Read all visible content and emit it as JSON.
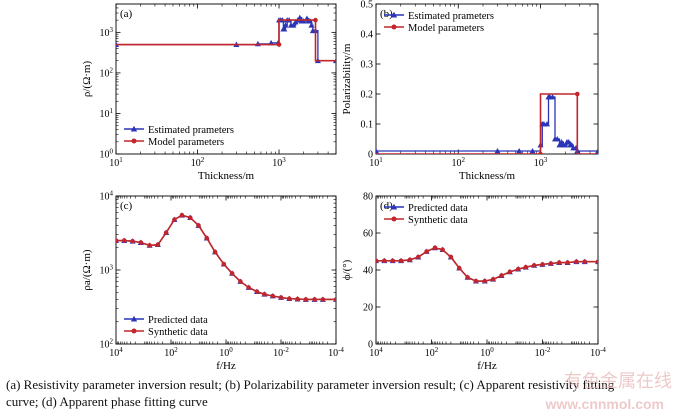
{
  "chart_data": [
    {
      "panel": "(a)",
      "type": "line",
      "xscale": "log",
      "yscale": "log",
      "xlim": [
        10,
        5000
      ],
      "ylim": [
        1,
        5000
      ],
      "xticks": [
        10,
        100,
        1000
      ],
      "xtick_labels": [
        "10¹",
        "10²",
        "10³"
      ],
      "yticks": [
        1,
        10,
        100,
        1000
      ],
      "ytick_labels": [
        "10⁰",
        "10¹",
        "10²",
        "10³"
      ],
      "xlabel": "Thickness/m",
      "ylabel": "ρ/(Ω·m)",
      "legend": "lower-left",
      "series": [
        {
          "name": "Estimated prameters",
          "color": "#2a35b8",
          "marker": "triangle",
          "x": [
            10,
            300,
            550,
            800,
            980,
            1000,
            1050,
            1100,
            1130,
            1160,
            1200,
            1260,
            1330,
            1400,
            1500,
            1600,
            1700,
            1800,
            1900,
            2000,
            2200,
            2300,
            2400,
            2500,
            2600,
            2800,
            3000,
            5000
          ],
          "y": [
            500,
            500,
            520,
            550,
            560,
            2000,
            2000,
            2000,
            1200,
            1200,
            1500,
            2000,
            2000,
            1500,
            1500,
            1800,
            2000,
            2300,
            1900,
            1900,
            2200,
            1900,
            1900,
            1500,
            1100,
            1100,
            200,
            200
          ]
        },
        {
          "name": "Model parameters",
          "color": "#c0262b",
          "marker": "circle",
          "x": [
            10,
            1000,
            1000,
            2800,
            2800,
            5000
          ],
          "y": [
            500,
            500,
            2000,
            2000,
            200,
            200
          ]
        }
      ]
    },
    {
      "panel": "(b)",
      "type": "line",
      "xscale": "log",
      "yscale": "linear",
      "xlim": [
        10,
        5000
      ],
      "ylim": [
        0,
        0.5
      ],
      "xticks": [
        10,
        100,
        1000
      ],
      "xtick_labels": [
        "10¹",
        "10²",
        "10³"
      ],
      "yticks": [
        0,
        0.1,
        0.2,
        0.3,
        0.4,
        0.5
      ],
      "ytick_labels": [
        "0",
        "0.1",
        "0.2",
        "0.3",
        "0.4",
        "0.5"
      ],
      "xlabel": "Thickness/m",
      "ylabel": "Polarizability/m",
      "legend": "top-left",
      "series": [
        {
          "name": "Estimated prameters",
          "color": "#2a35b8",
          "marker": "triangle",
          "x": [
            10,
            300,
            550,
            800,
            1000,
            1050,
            1100,
            1200,
            1250,
            1300,
            1400,
            1500,
            1600,
            1700,
            1800,
            1900,
            2000,
            2100,
            2200,
            2300,
            2400,
            2500,
            2700,
            2800,
            5000
          ],
          "y": [
            0.01,
            0.01,
            0.01,
            0.01,
            0.03,
            0.1,
            0.1,
            0.1,
            0.19,
            0.19,
            0.19,
            0.05,
            0.05,
            0.03,
            0.04,
            0.03,
            0.03,
            0.04,
            0.04,
            0.03,
            0.03,
            0.02,
            0.02,
            0.01,
            0.01
          ]
        },
        {
          "name": "Model parameters",
          "color": "#c0262b",
          "marker": "circle",
          "x": [
            10,
            1000,
            1000,
            2800,
            2800,
            5000
          ],
          "y": [
            0.0,
            0.0,
            0.2,
            0.2,
            0.0,
            0.0
          ]
        }
      ]
    },
    {
      "panel": "(c)",
      "type": "line",
      "xscale": "log",
      "yscale": "log",
      "xreversed": true,
      "xlim": [
        10000,
        0.0001
      ],
      "ylim": [
        100,
        10000
      ],
      "xticks": [
        10000,
        100,
        1,
        0.01,
        0.0001
      ],
      "xtick_labels": [
        "10⁴",
        "10²",
        "10⁰",
        "10⁻²",
        "10⁻⁴"
      ],
      "yticks": [
        100,
        1000,
        10000
      ],
      "ytick_labels": [
        "10²",
        "10³",
        "10⁴"
      ],
      "xlabel": "f/Hz",
      "ylabel": "ρa/(Ω·m)",
      "legend": "lower-left",
      "series": [
        {
          "name": "Predicted data",
          "color": "#2a35b8",
          "marker": "triangle",
          "x": [
            10000,
            5000,
            2500,
            1250,
            600,
            300,
            150,
            75,
            40,
            20,
            10,
            5,
            2.5,
            1.2,
            0.6,
            0.3,
            0.15,
            0.075,
            0.04,
            0.02,
            0.01,
            0.005,
            0.0025,
            0.00125,
            0.0006,
            0.0003,
            0.0001
          ],
          "y": [
            2500,
            2500,
            2450,
            2350,
            2150,
            2200,
            3200,
            4800,
            5500,
            5100,
            4000,
            2700,
            1750,
            1200,
            900,
            700,
            580,
            510,
            470,
            445,
            425,
            410,
            405,
            400,
            400,
            400,
            400
          ]
        },
        {
          "name": "Synthetic data",
          "color": "#c0262b",
          "marker": "circle",
          "x": [
            10000,
            5000,
            2500,
            1250,
            600,
            300,
            150,
            75,
            40,
            20,
            10,
            5,
            2.5,
            1.2,
            0.6,
            0.3,
            0.15,
            0.075,
            0.04,
            0.02,
            0.01,
            0.005,
            0.0025,
            0.00125,
            0.0006,
            0.0003,
            0.0001
          ],
          "y": [
            2500,
            2500,
            2450,
            2350,
            2150,
            2200,
            3200,
            4800,
            5500,
            5100,
            4000,
            2700,
            1750,
            1200,
            900,
            700,
            580,
            510,
            470,
            445,
            425,
            410,
            405,
            400,
            400,
            400,
            400
          ]
        }
      ]
    },
    {
      "panel": "(d)",
      "type": "line",
      "xscale": "log",
      "yscale": "linear",
      "xreversed": true,
      "xlim": [
        10000,
        0.0001
      ],
      "ylim": [
        0,
        80
      ],
      "xticks": [
        10000,
        100,
        1,
        0.01,
        0.0001
      ],
      "xtick_labels": [
        "10⁴",
        "10²",
        "10⁰",
        "10⁻²",
        "10⁻⁴"
      ],
      "yticks": [
        0,
        20,
        40,
        60,
        80
      ],
      "ytick_labels": [
        "0",
        "20",
        "40",
        "60",
        "80"
      ],
      "xlabel": "f/Hz",
      "ylabel": "ϕ/(°)",
      "legend": "top-left",
      "series": [
        {
          "name": "Predicted data",
          "color": "#2a35b8",
          "marker": "triangle",
          "x": [
            10000,
            5000,
            2500,
            1250,
            600,
            300,
            150,
            75,
            40,
            20,
            10,
            5,
            2.5,
            1.2,
            0.6,
            0.3,
            0.15,
            0.075,
            0.04,
            0.02,
            0.01,
            0.005,
            0.0025,
            0.00125,
            0.0006,
            0.0003,
            0.0001
          ],
          "y": [
            45,
            45,
            45,
            45,
            45.5,
            47,
            50,
            52,
            51,
            47,
            41,
            36,
            34,
            34,
            35,
            37,
            39,
            40.5,
            41.5,
            42.5,
            43,
            43.5,
            44,
            44,
            44.5,
            44.5,
            44.5
          ]
        },
        {
          "name": "Synthetic data",
          "color": "#c0262b",
          "marker": "circle",
          "x": [
            10000,
            5000,
            2500,
            1250,
            600,
            300,
            150,
            75,
            40,
            20,
            10,
            5,
            2.5,
            1.2,
            0.6,
            0.3,
            0.15,
            0.075,
            0.04,
            0.02,
            0.01,
            0.005,
            0.0025,
            0.00125,
            0.0006,
            0.0003,
            0.0001
          ],
          "y": [
            45,
            45,
            45,
            45,
            45.5,
            47,
            50,
            52,
            51,
            47,
            41,
            36,
            34,
            34,
            35,
            37,
            39,
            40.5,
            41.5,
            42.5,
            43,
            43.5,
            44,
            44,
            44.5,
            44.5,
            44.5
          ]
        }
      ]
    }
  ],
  "caption": {
    "line1": "(a) Resistivity parameter inversion result; (b) Polarizability parameter inversion result; (c) Apparent resistivity fitting",
    "line2": "curve; (d) Apparent phase fitting curve"
  },
  "watermark": {
    "text": "有色金属在线",
    "url": "www.cnnmol.com"
  }
}
